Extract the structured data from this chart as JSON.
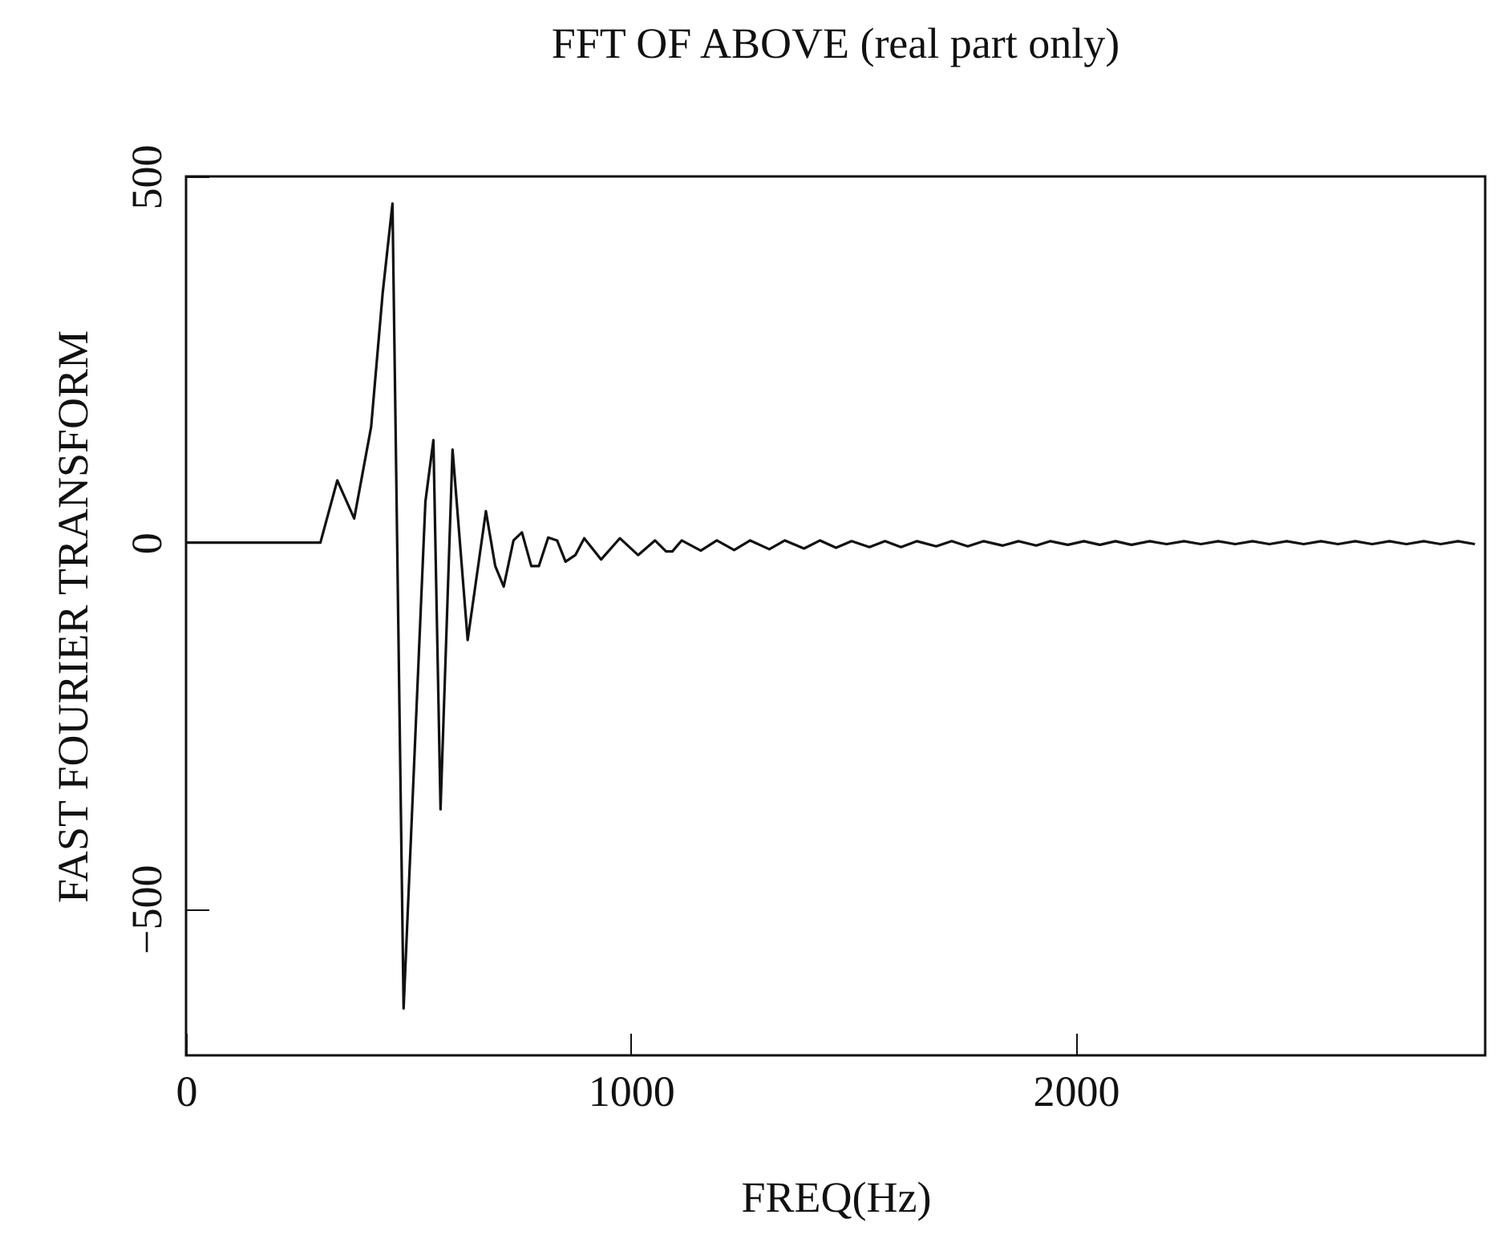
{
  "chart_data": {
    "type": "line",
    "title": "FFT OF ABOVE (real part only)",
    "xlabel": "FREQ(Hz)",
    "ylabel": "FAST FOURIER TRANSFORM",
    "x": [
      0,
      302,
      340,
      378,
      416,
      442,
      464,
      489,
      538,
      556,
      572,
      599,
      633,
      674,
      695,
      714,
      736,
      755,
      776,
      793,
      814,
      834,
      853,
      875,
      895,
      933,
      975,
      1016,
      1054,
      1079,
      1093,
      1114,
      1157,
      1193,
      1232,
      1268,
      1311,
      1346,
      1389,
      1425,
      1461,
      1496,
      1536,
      1571,
      1607,
      1643,
      1686,
      1721,
      1757,
      1793,
      1836,
      1871,
      1911,
      1943,
      1982,
      2018,
      2054,
      2089,
      2125,
      2166,
      2204,
      2243,
      2281,
      2320,
      2358,
      2397,
      2435,
      2474,
      2512,
      2551,
      2589,
      2628,
      2666,
      2705,
      2743,
      2782,
      2820,
      2859,
      2897
    ],
    "series": [
      {
        "color": "#111111",
        "values": [
          0,
          0,
          85,
          33,
          158,
          341,
          463,
          -636,
          56,
          140,
          -364,
          127,
          -133,
          43,
          -32,
          -60,
          3,
          14,
          -32,
          -32,
          7,
          3,
          -26,
          -17,
          6,
          -23,
          6,
          -17,
          3,
          -12,
          -12,
          3,
          -11,
          3,
          -10,
          3,
          -9,
          3,
          -8,
          3,
          -7,
          2,
          -6,
          2,
          -6,
          2,
          -5,
          2,
          -5,
          2,
          -4,
          2,
          -4,
          2,
          -3,
          2,
          -3,
          2,
          -3,
          2,
          -2,
          2,
          -2,
          2,
          -2,
          2,
          -2,
          2,
          -2,
          2,
          -2,
          2,
          -2,
          2,
          -2,
          2,
          -2,
          2,
          -2
        ]
      }
    ],
    "xlim": [
      0,
      2920
    ],
    "ylim": [
      -700,
      500
    ],
    "xticks": [
      0,
      1000,
      2000
    ],
    "yticks": [
      -500,
      0,
      500
    ],
    "grid": false,
    "legend": false,
    "marker": "none",
    "line_style": "solid"
  }
}
